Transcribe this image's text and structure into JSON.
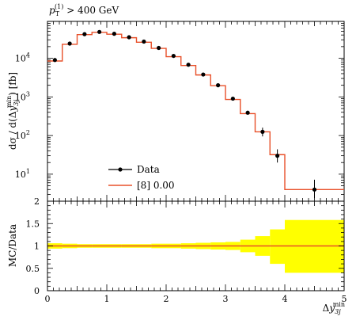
{
  "chart_data": [
    {
      "type": "line",
      "title": "p_T^(1) > 400 GeV",
      "title_parts": {
        "p": "p",
        "sub": "T",
        "sup": "(1)",
        "rest": " > 400 GeV"
      },
      "ylabel": "dσ / d(Δy_3j^min) [fb]",
      "ylabel_parts": {
        "a": "dσ / d(Δ",
        "y": "y",
        "sub": "3j",
        "sup": "min",
        "b": ") [fb]"
      },
      "yscale": "log",
      "ylim": [
        2,
        90000
      ],
      "xlim": [
        0,
        5
      ],
      "ytick_values": [
        10,
        100,
        1000,
        10000
      ],
      "ytick_labels": [
        {
          "base": "10",
          "exp": "1"
        },
        {
          "base": "10",
          "exp": "2"
        },
        {
          "base": "10",
          "exp": "3"
        },
        {
          "base": "10",
          "exp": "4"
        }
      ],
      "edges": [
        0,
        0.25,
        0.5,
        0.75,
        1.0,
        1.25,
        1.5,
        1.75,
        2.0,
        2.25,
        2.5,
        2.75,
        3.0,
        3.25,
        3.5,
        3.75,
        4.0,
        5.0
      ],
      "series": [
        {
          "name": "Data",
          "style": "markers",
          "color": "#000000",
          "x": [
            0.125,
            0.375,
            0.625,
            0.875,
            1.125,
            1.375,
            1.625,
            1.875,
            2.125,
            2.375,
            2.625,
            2.875,
            3.125,
            3.375,
            3.625,
            3.875,
            4.5
          ],
          "values": [
            9000,
            24000,
            42000,
            48000,
            43000,
            35000,
            27000,
            18500,
            11500,
            6800,
            3800,
            2000,
            900,
            390,
            125,
            30,
            4
          ],
          "err_low": [
            8800,
            23500,
            41500,
            47500,
            42500,
            34500,
            26500,
            18100,
            11200,
            6600,
            3650,
            1900,
            840,
            350,
            95,
            20,
            2.4
          ],
          "err_high": [
            9200,
            24500,
            42500,
            48500,
            43500,
            35500,
            27500,
            18900,
            11800,
            7000,
            3950,
            2100,
            960,
            430,
            160,
            44,
            7.2
          ]
        },
        {
          "name": "[8] 0.00",
          "style": "step",
          "color": "#e8502a",
          "values": [
            8500,
            23000,
            41000,
            47000,
            42000,
            34000,
            26000,
            18000,
            11000,
            6500,
            3700,
            1950,
            860,
            370,
            125,
            32,
            4
          ]
        }
      ],
      "legend": {
        "placement": "lower-left"
      }
    },
    {
      "type": "area",
      "ylabel": "MC/Data",
      "xlabel": "Δy_3j^min",
      "xlabel_parts": {
        "a": "Δ",
        "y": "y",
        "sub": "3j",
        "sup": "min"
      },
      "xlim": [
        0,
        5
      ],
      "ylim": [
        0,
        2
      ],
      "xtick_labels": [
        "0",
        "1",
        "2",
        "3",
        "4",
        "5"
      ],
      "ytick_labels": [
        "0",
        "0.5",
        "1",
        "1.5",
        "2"
      ],
      "ytick_values": [
        0,
        0.5,
        1,
        1.5,
        2
      ],
      "band_color": "#ffff00",
      "line_color": "#e8502a",
      "ratio": [
        1,
        1,
        1,
        1,
        1,
        1,
        1,
        1,
        1,
        1,
        1,
        1,
        1,
        1,
        1,
        1,
        1
      ],
      "band_low": [
        0.94,
        0.95,
        0.96,
        0.96,
        0.96,
        0.96,
        0.96,
        0.95,
        0.95,
        0.94,
        0.93,
        0.92,
        0.91,
        0.86,
        0.78,
        0.6,
        0.4
      ],
      "band_high": [
        1.06,
        1.05,
        1.04,
        1.04,
        1.04,
        1.04,
        1.04,
        1.05,
        1.05,
        1.06,
        1.07,
        1.08,
        1.09,
        1.14,
        1.22,
        1.37,
        1.58
      ]
    }
  ]
}
